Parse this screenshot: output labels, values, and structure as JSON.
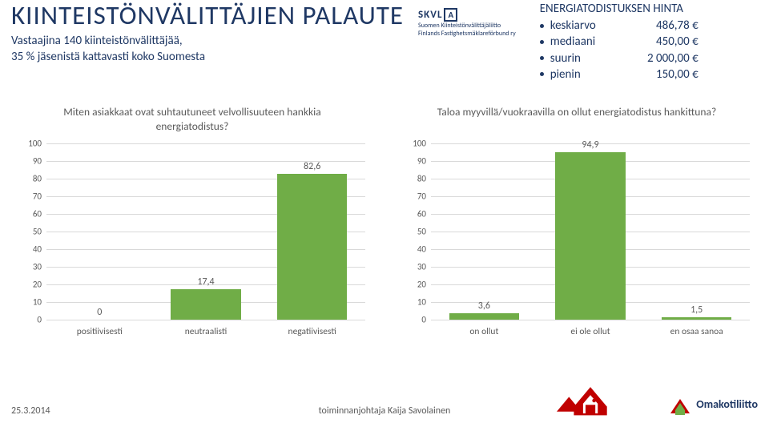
{
  "header": {
    "title": "KIINTEISTÖNVÄLITTÄJIEN PALAUTE",
    "sub_line1": "Vastaajina 140 kiinteistönvälittäjää,",
    "sub_line2": "35 % jäsenistä kattavasti koko Suomesta",
    "skvl": {
      "main": "SKVL",
      "badge": "A",
      "sub1": "Suomen Kiinteistönvälittäjäliitto",
      "sub2": "Finlands Fastighetsmäklareförbund ry"
    },
    "price": {
      "title": "ENERGIATODISTUKSEN HINTA",
      "rows": [
        {
          "label": "keskiarvo",
          "value": "486,78 €"
        },
        {
          "label": "mediaani",
          "value": "450,00 €"
        },
        {
          "label": "suurin",
          "value": "2 000,00 €"
        },
        {
          "label": "pienin",
          "value": "150,00 €"
        }
      ]
    }
  },
  "charts": {
    "left": {
      "title": "Miten asiakkaat ovat suhtautuneet velvollisuuteen hankkia energiatodistus?",
      "type": "bar",
      "ylim": [
        0,
        100
      ],
      "ytick_step": 10,
      "bar_color": "#70ad47",
      "grid_color": "#d9d9d9",
      "text_color": "#5a5a5a",
      "categories": [
        "positiivisesti",
        "neutraalisti",
        "negatiivisesti"
      ],
      "values": [
        0,
        17.4,
        82.6
      ],
      "value_labels": [
        "0",
        "17,4",
        "82,6"
      ]
    },
    "right": {
      "title": "Taloa myyvillä/vuokraavilla on ollut energiatodistus hankittuna?",
      "type": "bar",
      "ylim": [
        0,
        100
      ],
      "ytick_step": 10,
      "bar_color": "#70ad47",
      "grid_color": "#d9d9d9",
      "text_color": "#5a5a5a",
      "categories": [
        "on ollut",
        "ei ole ollut",
        "en osaa sanoa"
      ],
      "values": [
        3.6,
        94.9,
        1.5
      ],
      "value_labels": [
        "3,6",
        "94,9",
        "1,5"
      ]
    }
  },
  "footer": {
    "date": "25.3.2014",
    "role": "toiminnanjohtaja Kaija Savolainen",
    "omakoti": "Omakotiliitto"
  },
  "colors": {
    "title": "#1f3864",
    "bar": "#70ad47",
    "grid": "#d9d9d9",
    "text": "#5a5a5a",
    "logo_red": "#c00000",
    "logo_green": "#70ad47",
    "logo_blue": "#1f3864"
  }
}
